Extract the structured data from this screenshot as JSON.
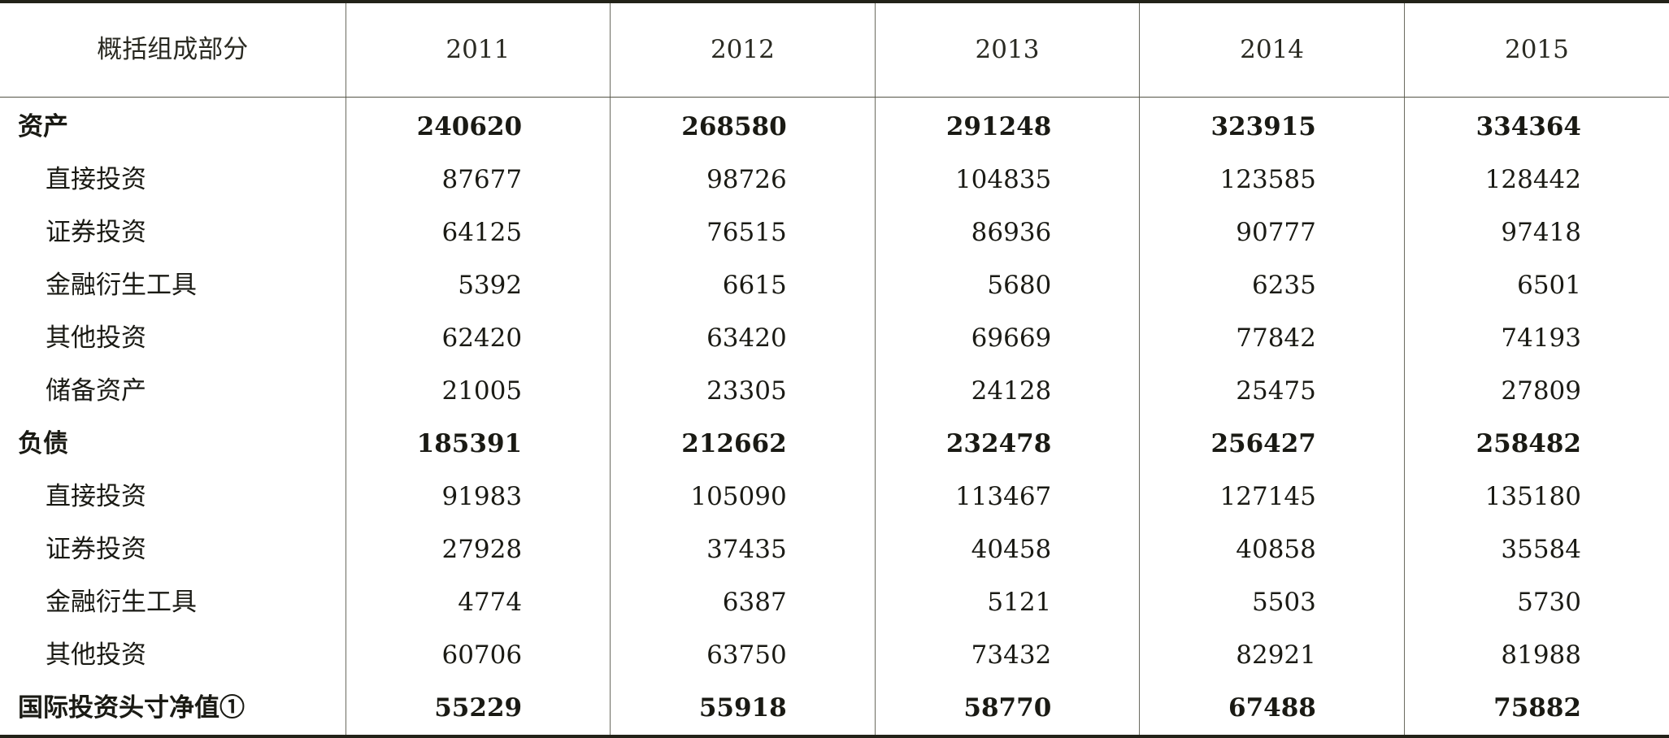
{
  "table": {
    "header": [
      "概括组成部分",
      "2011",
      "2012",
      "2013",
      "2014",
      "2015"
    ],
    "rows": [
      {
        "label": "资产",
        "bold": true,
        "values": [
          "240620",
          "268580",
          "291248",
          "323915",
          "334364"
        ]
      },
      {
        "label": "直接投资",
        "bold": false,
        "values": [
          "87677",
          "98726",
          "104835",
          "123585",
          "128442"
        ]
      },
      {
        "label": "证券投资",
        "bold": false,
        "values": [
          "64125",
          "76515",
          "86936",
          "90777",
          "97418"
        ]
      },
      {
        "label": "金融衍生工具",
        "bold": false,
        "values": [
          "5392",
          "6615",
          "5680",
          "6235",
          "6501"
        ]
      },
      {
        "label": "其他投资",
        "bold": false,
        "values": [
          "62420",
          "63420",
          "69669",
          "77842",
          "74193"
        ]
      },
      {
        "label": "储备资产",
        "bold": false,
        "values": [
          "21005",
          "23305",
          "24128",
          "25475",
          "27809"
        ]
      },
      {
        "label": "负债",
        "bold": true,
        "values": [
          "185391",
          "212662",
          "232478",
          "256427",
          "258482"
        ]
      },
      {
        "label": "直接投资",
        "bold": false,
        "values": [
          "91983",
          "105090",
          "113467",
          "127145",
          "135180"
        ]
      },
      {
        "label": "证券投资",
        "bold": false,
        "values": [
          "27928",
          "37435",
          "40458",
          "40858",
          "35584"
        ]
      },
      {
        "label": "金融衍生工具",
        "bold": false,
        "values": [
          "4774",
          "6387",
          "5121",
          "5503",
          "5730"
        ]
      },
      {
        "label": "其他投资",
        "bold": false,
        "values": [
          "60706",
          "63750",
          "73432",
          "82921",
          "81988"
        ]
      },
      {
        "label": "国际投资头寸净值①",
        "bold": true,
        "values": [
          "55229",
          "55918",
          "58770",
          "67488",
          "75882"
        ]
      }
    ]
  }
}
